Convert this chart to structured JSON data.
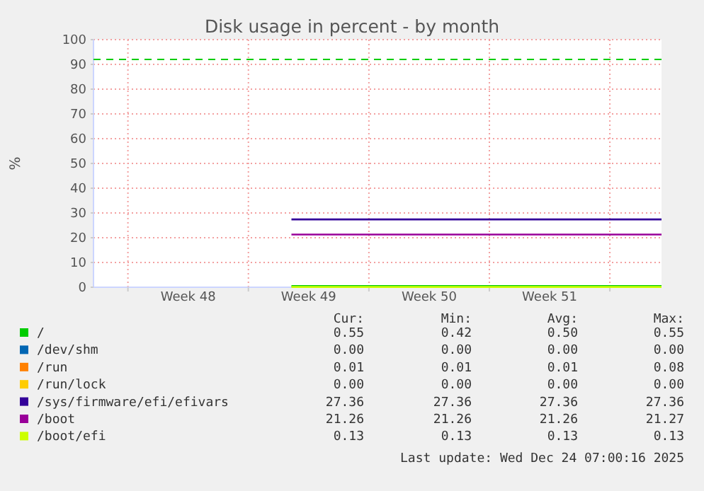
{
  "chart_data": {
    "type": "line",
    "title": "Disk usage in percent - by month",
    "ylabel": "%",
    "categories": [
      null,
      null,
      null,
      null,
      null,
      null,
      null,
      null,
      null,
      null,
      null,
      "Week 48",
      null,
      null,
      null,
      null,
      null,
      null,
      null,
      null,
      null,
      null,
      null,
      null,
      null,
      "Week 49",
      null,
      null,
      null,
      null,
      null,
      null,
      null,
      null,
      null,
      null,
      null,
      null,
      null,
      "Week 50",
      null,
      null,
      null,
      null,
      null,
      null,
      null,
      null,
      null,
      null,
      null,
      null,
      null,
      "Week 51",
      null,
      null,
      null,
      null,
      null,
      null,
      null,
      null,
      null,
      null,
      null,
      null,
      null
    ],
    "ylim": [
      0,
      100
    ],
    "yticks": [
      0,
      10,
      20,
      30,
      40,
      50,
      60,
      70,
      80,
      90,
      100
    ],
    "grid": true,
    "legend": "bottom",
    "line_style": "solid",
    "marker": "none",
    "series": [
      {
        "name": "/",
        "color": "#00cc00",
        "values": [
          null,
          null,
          null,
          null,
          null,
          null,
          null,
          null,
          null,
          null,
          null,
          null,
          null,
          null,
          null,
          null,
          null,
          null,
          null,
          null,
          null,
          null,
          null,
          0.5,
          0.5,
          0.5,
          0.5,
          0.5,
          0.5,
          0.5,
          0.5,
          0.5,
          0.5,
          0.5,
          0.5,
          0.5,
          0.5,
          0.5,
          0.5,
          0.5,
          0.5,
          0.5,
          0.5,
          0.5,
          0.5,
          0.5,
          0.5,
          0.5,
          0.5,
          0.5,
          0.5,
          0.5,
          0.5,
          0.5,
          0.5,
          0.5,
          0.5,
          0.5,
          0.5,
          0.5,
          0.5,
          0.5,
          0.5,
          0.5,
          0.5,
          0.5,
          0.5
        ]
      },
      {
        "name": "/dev/shm",
        "color": "#0066b3",
        "values": [
          null,
          null,
          null,
          null,
          null,
          null,
          null,
          null,
          null,
          null,
          null,
          null,
          null,
          null,
          null,
          null,
          null,
          null,
          null,
          null,
          null,
          null,
          null,
          null,
          null,
          null,
          null,
          null,
          null,
          null,
          null,
          null,
          null,
          null,
          null,
          null,
          null,
          null,
          null,
          null,
          null,
          null,
          null,
          null,
          null,
          null,
          null,
          null,
          null,
          null,
          null,
          null,
          null,
          null,
          null,
          null,
          null,
          null,
          null,
          null,
          null,
          null,
          null,
          null,
          null,
          null,
          null
        ]
      },
      {
        "name": "/run",
        "color": "#ff8000",
        "values": [
          null,
          null,
          null,
          null,
          null,
          null,
          null,
          null,
          null,
          null,
          null,
          null,
          null,
          null,
          null,
          null,
          null,
          null,
          null,
          null,
          null,
          null,
          null,
          null,
          null,
          null,
          null,
          null,
          null,
          null,
          null,
          null,
          null,
          null,
          null,
          null,
          null,
          null,
          null,
          null,
          null,
          null,
          null,
          null,
          null,
          null,
          null,
          null,
          null,
          null,
          null,
          null,
          null,
          null,
          null,
          null,
          null,
          null,
          null,
          null,
          null,
          null,
          null,
          null,
          null,
          null,
          null
        ]
      },
      {
        "name": "/run/lock",
        "color": "#ffcc00",
        "values": [
          null,
          null,
          null,
          null,
          null,
          null,
          null,
          null,
          null,
          null,
          null,
          null,
          null,
          null,
          null,
          null,
          null,
          null,
          null,
          null,
          null,
          null,
          null,
          null,
          null,
          null,
          null,
          null,
          null,
          null,
          null,
          null,
          null,
          null,
          null,
          null,
          null,
          null,
          null,
          null,
          null,
          null,
          null,
          null,
          null,
          null,
          null,
          null,
          null,
          null,
          null,
          null,
          null,
          null,
          null,
          null,
          null,
          null,
          null,
          null,
          null,
          null,
          null,
          null,
          null,
          null,
          null
        ]
      },
      {
        "name": "/sys/firmware/efi/efivars",
        "color": "#330099",
        "values": [
          null,
          null,
          null,
          null,
          null,
          null,
          null,
          null,
          null,
          null,
          null,
          null,
          null,
          null,
          null,
          null,
          null,
          null,
          null,
          null,
          null,
          null,
          null,
          27.4,
          27.4,
          27.4,
          27.4,
          27.4,
          27.4,
          27.4,
          27.4,
          27.4,
          27.4,
          27.4,
          27.4,
          27.4,
          27.4,
          27.4,
          27.4,
          27.4,
          27.4,
          27.4,
          27.4,
          27.4,
          27.4,
          27.4,
          27.4,
          27.4,
          27.4,
          27.4,
          27.4,
          27.4,
          27.4,
          27.4,
          27.4,
          27.4,
          27.4,
          27.4,
          27.4,
          27.4,
          27.4,
          27.4,
          27.4,
          27.4,
          27.4,
          27.4,
          27.4
        ]
      },
      {
        "name": "/boot",
        "color": "#990099",
        "values": [
          null,
          null,
          null,
          null,
          null,
          null,
          null,
          null,
          null,
          null,
          null,
          null,
          null,
          null,
          null,
          null,
          null,
          null,
          null,
          null,
          null,
          null,
          null,
          21.3,
          21.3,
          21.3,
          21.3,
          21.3,
          21.3,
          21.3,
          21.3,
          21.3,
          21.3,
          21.3,
          21.3,
          21.3,
          21.3,
          21.3,
          21.3,
          21.3,
          21.3,
          21.3,
          21.3,
          21.3,
          21.3,
          21.3,
          21.3,
          21.3,
          21.3,
          21.3,
          21.3,
          21.3,
          21.3,
          21.3,
          21.3,
          21.3,
          21.3,
          21.3,
          21.3,
          21.3,
          21.3,
          21.3,
          21.3,
          21.3,
          21.3,
          21.3,
          21.3
        ]
      },
      {
        "name": "/boot/efi",
        "color": "#ccff00",
        "values": [
          null,
          null,
          null,
          null,
          null,
          null,
          null,
          null,
          null,
          null,
          null,
          null,
          null,
          null,
          null,
          null,
          null,
          null,
          null,
          null,
          null,
          null,
          null,
          0.1,
          0.1,
          0.1,
          0.1,
          0.1,
          0.1,
          0.1,
          0.1,
          0.1,
          0.1,
          0.1,
          0.1,
          0.1,
          0.1,
          0.1,
          0.1,
          0.1,
          0.1,
          0.1,
          0.1,
          0.1,
          0.1,
          0.1,
          0.1,
          0.1,
          0.1,
          0.1,
          0.1,
          0.1,
          0.1,
          0.1,
          0.1,
          0.1,
          0.1,
          0.1,
          0.1,
          0.1,
          0.1,
          0.1,
          0.1,
          0.1,
          0.1,
          0.1,
          0.1
        ]
      }
    ],
    "ref_lines": [
      {
        "axis": "y",
        "value": 92,
        "color": "#00cc00",
        "line_style": "dashed"
      }
    ],
    "annotations": [
      "Cur:",
      "Min:",
      "Avg:",
      "Max:",
      "0.55",
      "0.42",
      "0.50",
      "0.55",
      "0.00",
      "0.00",
      "0.00",
      "0.00",
      "0.01",
      "0.01",
      "0.01",
      "0.08",
      "0.00",
      "0.00",
      "0.00",
      "0.00",
      "27.36",
      "27.36",
      "27.36",
      "27.36",
      "21.26",
      "21.26",
      "21.26",
      "21.27",
      "0.13",
      "0.13",
      "0.13",
      "0.13",
      "Last update: Wed Dec 24 07:00:16 2025"
    ]
  }
}
